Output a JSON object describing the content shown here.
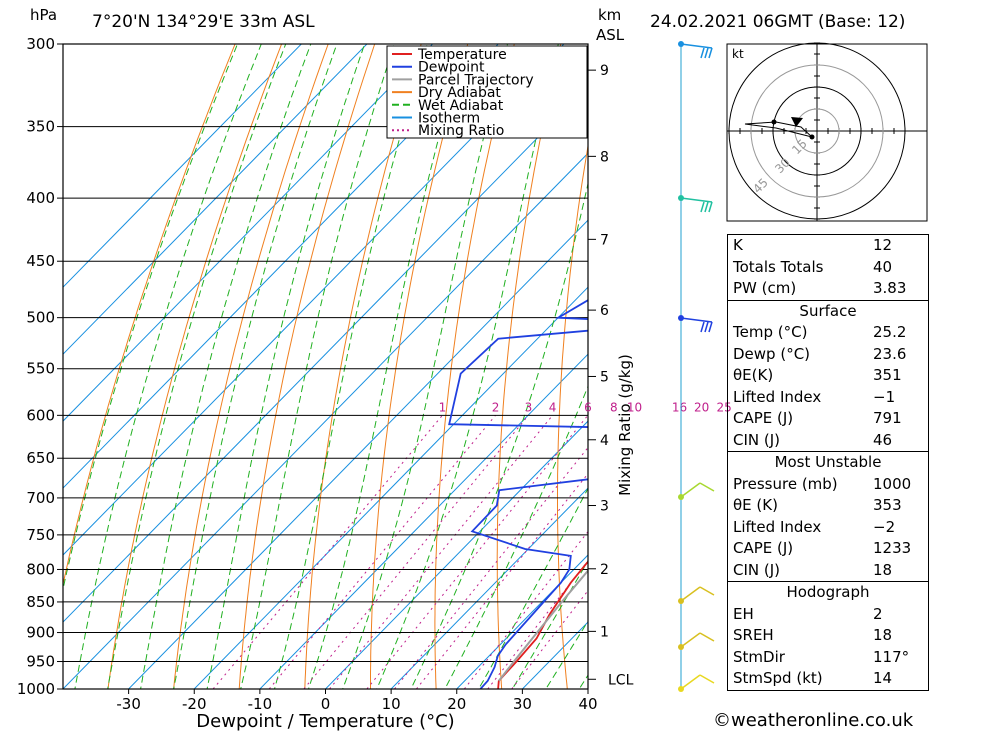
{
  "header": {
    "hpa_unit": "hPa",
    "location": "7°20'N 134°29'E 33m ASL",
    "km_unit": "km",
    "asl": "ASL",
    "datetime": "24.02.2021 06GMT (Base: 12)"
  },
  "chart_data": {
    "type": "line",
    "title": "7°20'N 134°29'E 33m ASL",
    "xlabel": "Dewpoint / Temperature (°C)",
    "ylabel": "hPa",
    "xlim": [
      -40,
      40
    ],
    "ylim": [
      1000,
      300
    ],
    "pressure_ticks": [
      300,
      350,
      400,
      450,
      500,
      550,
      600,
      650,
      700,
      750,
      800,
      850,
      900,
      950,
      1000
    ],
    "temp_ticks": [
      -30,
      -20,
      -10,
      0,
      10,
      20,
      30,
      40
    ],
    "km_ticks": [
      {
        "label": "9",
        "p": 315
      },
      {
        "label": "8",
        "p": 370
      },
      {
        "label": "7",
        "p": 432
      },
      {
        "label": "6",
        "p": 493
      },
      {
        "label": "5",
        "p": 558
      },
      {
        "label": "4",
        "p": 628
      },
      {
        "label": "3",
        "p": 710
      },
      {
        "label": "2",
        "p": 799
      },
      {
        "label": "1",
        "p": 898
      },
      {
        "label": "LCL",
        "p": 982
      }
    ],
    "mixing_ratio_axis_label": "Mixing Ratio (g/kg)",
    "mixing_ratio_labels": [
      "1",
      "2",
      "3",
      "4",
      "6",
      "8",
      "10",
      "16",
      "20",
      "25"
    ],
    "legend": [
      "Temperature",
      "Dewpoint",
      "Parcel Trajectory",
      "Dry Adiabat",
      "Wet Adiabat",
      "Isotherm",
      "Mixing Ratio"
    ],
    "legend_position": "top-right",
    "colors": {
      "temperature": "#e02020",
      "dewpoint": "#2040e0",
      "parcel": "#a0a0a0",
      "dry_adiabat": "#f08020",
      "wet_adiabat": "#20b020",
      "isotherm": "#1890e0",
      "mixing_ratio": "#c0208c"
    },
    "series": [
      {
        "name": "Temperature",
        "points": [
          [
            26.3,
            1000
          ],
          [
            25.2,
            985
          ],
          [
            25,
            950
          ],
          [
            24.6,
            910
          ],
          [
            23,
            870
          ],
          [
            21.5,
            820
          ],
          [
            21,
            790
          ],
          [
            22.5,
            760
          ],
          [
            22,
            730
          ],
          [
            20.5,
            710
          ],
          [
            19.7,
            690
          ],
          [
            19.3,
            660
          ],
          [
            19.5,
            630
          ],
          [
            18.2,
            615
          ],
          [
            19.4,
            605
          ],
          [
            18.5,
            580
          ],
          [
            17.5,
            550
          ],
          [
            15.7,
            520
          ],
          [
            14,
            500
          ],
          [
            12.4,
            470
          ],
          [
            10.8,
            440
          ],
          [
            10.2,
            425
          ],
          [
            10.2,
            405
          ],
          [
            9.6,
            390
          ],
          [
            7,
            360
          ],
          [
            6.5,
            345
          ],
          [
            5.3,
            320
          ],
          [
            4,
            300
          ]
        ]
      },
      {
        "name": "Dewpoint",
        "points": [
          [
            23.6,
            1000
          ],
          [
            23.5,
            985
          ],
          [
            22.5,
            960
          ],
          [
            21.3,
            940
          ],
          [
            20.8,
            920
          ],
          [
            20.5,
            880
          ],
          [
            20,
            820
          ],
          [
            19.3,
            800
          ],
          [
            17.5,
            780
          ],
          [
            9.5,
            770
          ],
          [
            -1.2,
            745
          ],
          [
            -1.3,
            710
          ],
          [
            -3.2,
            690
          ],
          [
            15.7,
            668
          ],
          [
            11.8,
            657
          ],
          [
            16.5,
            643
          ],
          [
            11.7,
            633
          ],
          [
            14.3,
            622
          ],
          [
            12.5,
            615
          ],
          [
            -20.7,
            610
          ],
          [
            -26.5,
            555
          ],
          [
            -26,
            520
          ],
          [
            -1.5,
            505
          ],
          [
            -20,
            500
          ],
          [
            -13.8,
            450
          ],
          [
            7.2,
            425
          ],
          [
            9.8,
            415
          ],
          [
            7.5,
            410
          ],
          [
            9.5,
            405
          ],
          [
            9.5,
            398
          ],
          [
            10.5,
            392
          ],
          [
            9.2,
            385
          ],
          [
            11.5,
            380
          ],
          [
            10,
            375
          ],
          [
            9.2,
            365
          ],
          [
            7.5,
            360
          ],
          [
            4.5,
            325
          ],
          [
            -5,
            300
          ]
        ]
      },
      {
        "name": "Parcel Trajectory",
        "points": [
          [
            25.2,
            985
          ],
          [
            24.6,
            950
          ],
          [
            23.8,
            900
          ],
          [
            23,
            850
          ],
          [
            22.3,
            800
          ],
          [
            21.5,
            750
          ],
          [
            20.8,
            700
          ],
          [
            20.2,
            650
          ],
          [
            19.3,
            600
          ],
          [
            18,
            550
          ],
          [
            16.3,
            500
          ],
          [
            14,
            450
          ],
          [
            11.8,
            400
          ],
          [
            9.8,
            370
          ]
        ]
      }
    ]
  },
  "hodograph": {
    "unit": "kt",
    "ring_labels": [
      "15",
      "30",
      "45"
    ]
  },
  "indices": [
    {
      "label": "K",
      "value": "12"
    },
    {
      "label": "Totals Totals",
      "value": "40"
    },
    {
      "label": "PW (cm)",
      "value": "3.83"
    }
  ],
  "surface": {
    "title": "Surface",
    "rows": [
      {
        "label": "Temp (°C)",
        "value": "25.2"
      },
      {
        "label": "Dewp (°C)",
        "value": "23.6"
      },
      {
        "label": "θE(K)",
        "value": "351"
      },
      {
        "label": "Lifted Index",
        "value": "−1"
      },
      {
        "label": "CAPE (J)",
        "value": "791"
      },
      {
        "label": "CIN (J)",
        "value": "46"
      }
    ]
  },
  "most_unstable": {
    "title": "Most Unstable",
    "rows": [
      {
        "label": "Pressure (mb)",
        "value": "1000"
      },
      {
        "label": "θE (K)",
        "value": "353"
      },
      {
        "label": "Lifted Index",
        "value": "−2"
      },
      {
        "label": "CAPE (J)",
        "value": "1233"
      },
      {
        "label": "CIN (J)",
        "value": "18"
      }
    ]
  },
  "hodograph_stats": {
    "title": "Hodograph",
    "rows": [
      {
        "label": "EH",
        "value": "2"
      },
      {
        "label": "SREH",
        "value": "18"
      },
      {
        "label": "StmDir",
        "value": "117°"
      },
      {
        "label": "StmSpd (kt)",
        "value": "14"
      }
    ]
  },
  "copyright": "©weatheronline.co.uk"
}
